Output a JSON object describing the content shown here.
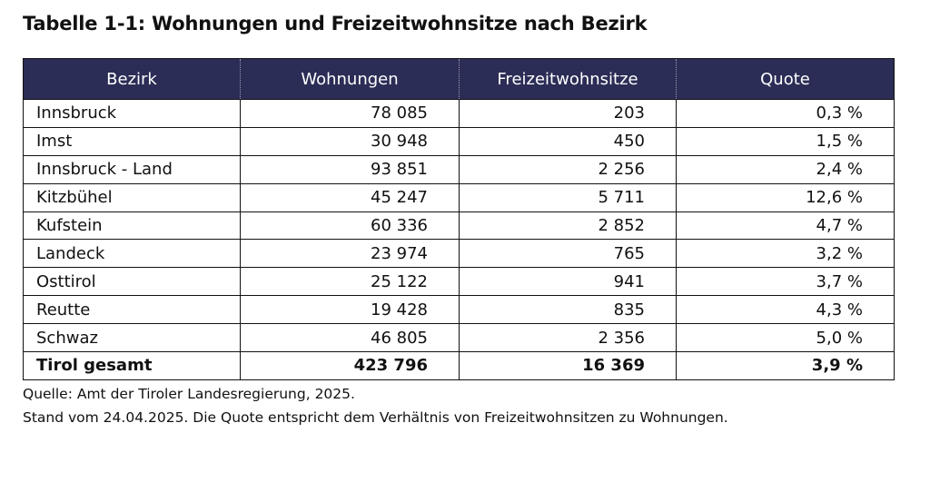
{
  "title": "Tabelle 1-1: Wohnungen und Freizeitwohnsitze nach Bezirk",
  "table": {
    "header": [
      "Bezirk",
      "Wohnungen",
      "Freizeitwohnsitze",
      "Quote"
    ],
    "rows": [
      [
        "Innsbruck",
        "78 085",
        "203",
        "0,3 %"
      ],
      [
        "Imst",
        "30 948",
        "450",
        "1,5 %"
      ],
      [
        "Innsbruck - Land",
        "93 851",
        "2 256",
        "2,4 %"
      ],
      [
        "Kitzbühel",
        "45 247",
        "5 711",
        "12,6 %"
      ],
      [
        "Kufstein",
        "60 336",
        "2 852",
        "4,7 %"
      ],
      [
        "Landeck",
        "23 974",
        "765",
        "3,2 %"
      ],
      [
        "Osttirol",
        "25 122",
        "941",
        "3,7 %"
      ],
      [
        "Reutte",
        "19 428",
        "835",
        "4,3 %"
      ],
      [
        "Schwaz",
        "46 805",
        "2 356",
        "5,0 %"
      ]
    ],
    "total": [
      "Tirol gesamt",
      "423 796",
      "16 369",
      "3,9 %"
    ]
  },
  "notes": [
    "Quelle: Amt der Tiroler Landesregierung, 2025.",
    "Stand vom 24.04.2025. Die Quote entspricht dem Verhältnis von Freizeitwohnsitzen zu Wohnungen."
  ]
}
